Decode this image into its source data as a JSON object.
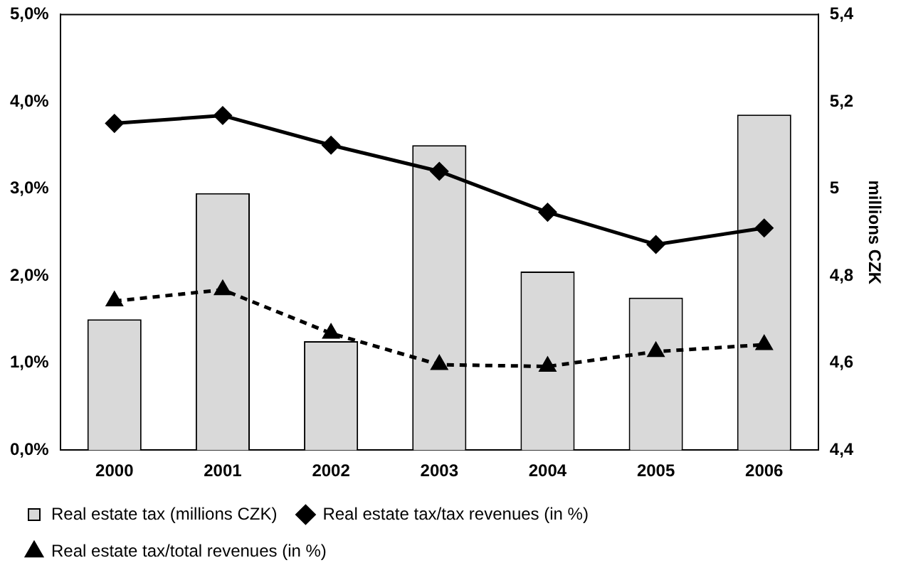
{
  "chart_data": {
    "type": "bar",
    "categories": [
      "2000",
      "2001",
      "2002",
      "2003",
      "2004",
      "2005",
      "2006"
    ],
    "y2label": "millions CZK",
    "series": [
      {
        "name": "Real estate tax (millions CZK)",
        "axis": "y2",
        "color": "#d9d9d9",
        "values": [
          4.7,
          4.99,
          4.65,
          5.1,
          4.81,
          4.75,
          5.17
        ]
      },
      {
        "name": "Real estate tax/tax revenues (in %)",
        "type": "line",
        "axis": "y",
        "color": "#000000",
        "marker": "diamond",
        "line_style": "solid",
        "values": [
          3.75,
          3.84,
          3.5,
          3.2,
          2.73,
          2.36,
          2.55
        ]
      },
      {
        "name": "Real estate tax/total revenues (in %)",
        "type": "line",
        "axis": "y",
        "color": "#000000",
        "marker": "triangle",
        "line_style": "dashed",
        "values": [
          1.71,
          1.84,
          1.34,
          0.98,
          0.96,
          1.13,
          1.21
        ]
      }
    ],
    "ylim": [
      0,
      5
    ],
    "yticks": [
      {
        "value": 0,
        "label": "0,0%"
      },
      {
        "value": 1,
        "label": "1,0%"
      },
      {
        "value": 2,
        "label": "2,0%"
      },
      {
        "value": 3,
        "label": "3,0%"
      },
      {
        "value": 4,
        "label": "4,0%"
      },
      {
        "value": 5,
        "label": "5,0%"
      }
    ],
    "y2lim": [
      4.4,
      5.4
    ],
    "y2ticks": [
      {
        "value": 4.4,
        "label": "4,4"
      },
      {
        "value": 4.6,
        "label": "4,6"
      },
      {
        "value": 4.8,
        "label": "4,8"
      },
      {
        "value": 5,
        "label": "5"
      },
      {
        "value": 5.2,
        "label": "5,2"
      },
      {
        "value": 5.4,
        "label": "5,4"
      }
    ],
    "legend": "bottom"
  }
}
